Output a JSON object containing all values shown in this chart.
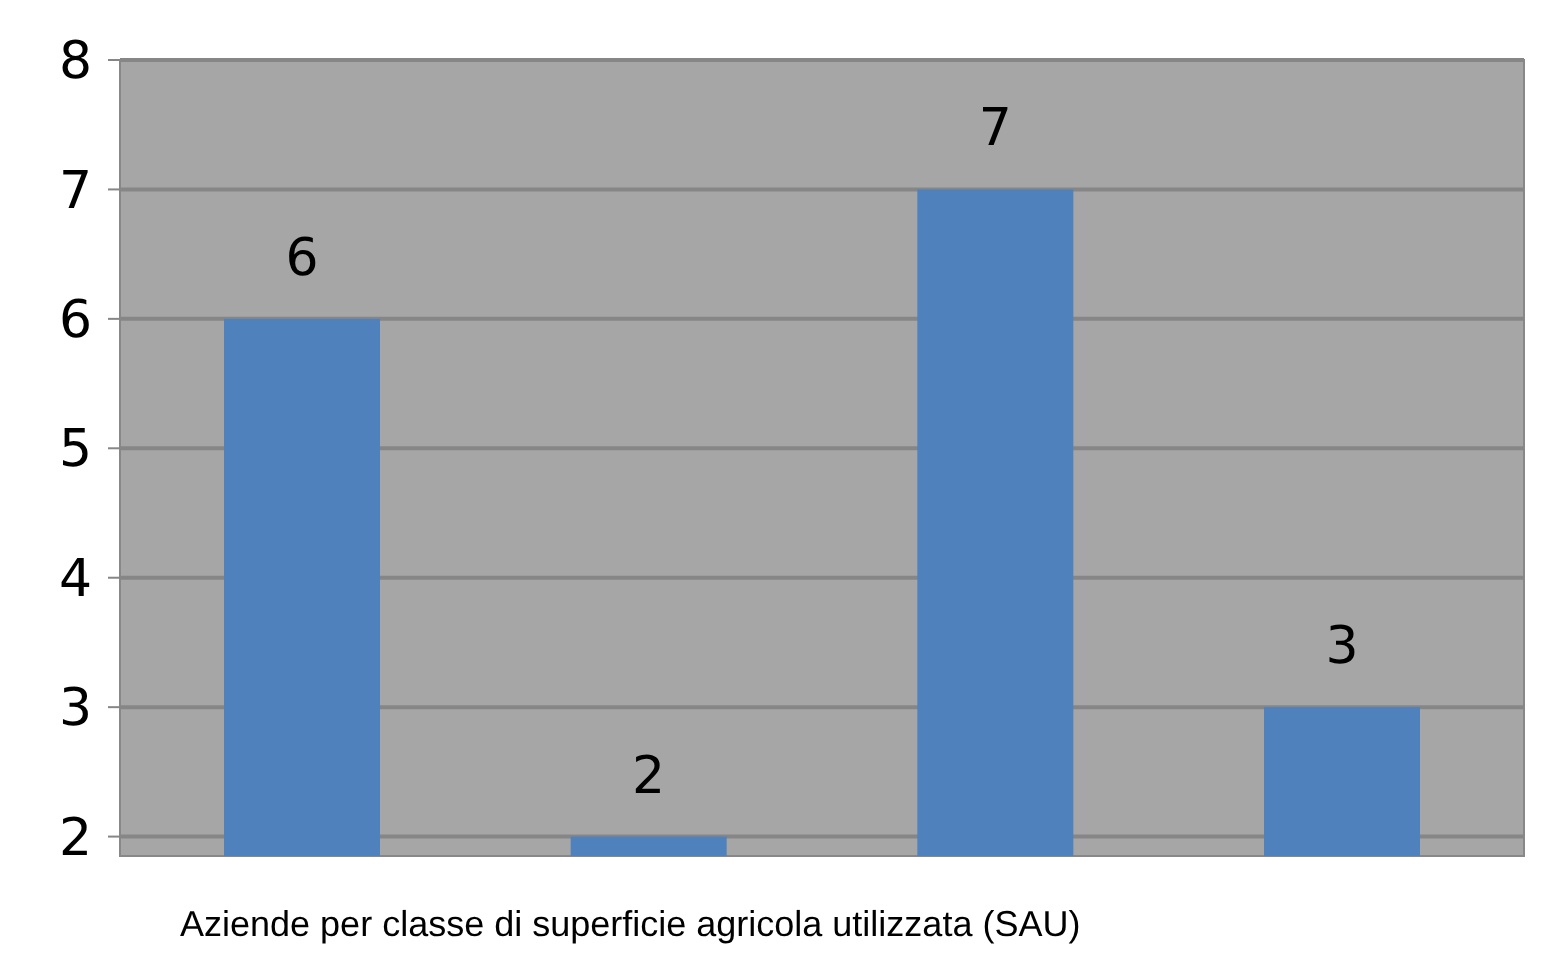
{
  "chart_data": {
    "type": "bar",
    "categories": [
      null,
      null,
      null,
      null
    ],
    "values": [
      6,
      2,
      7,
      3
    ],
    "color": "#4f81bd",
    "ylim": [
      1.85,
      8
    ],
    "yticks": [
      2,
      3,
      4,
      5,
      6,
      7,
      8
    ],
    "grid": "y",
    "data_labels": true,
    "xlabel": "Aziende per classe di superficie agricola utilizzata (SAU)"
  }
}
